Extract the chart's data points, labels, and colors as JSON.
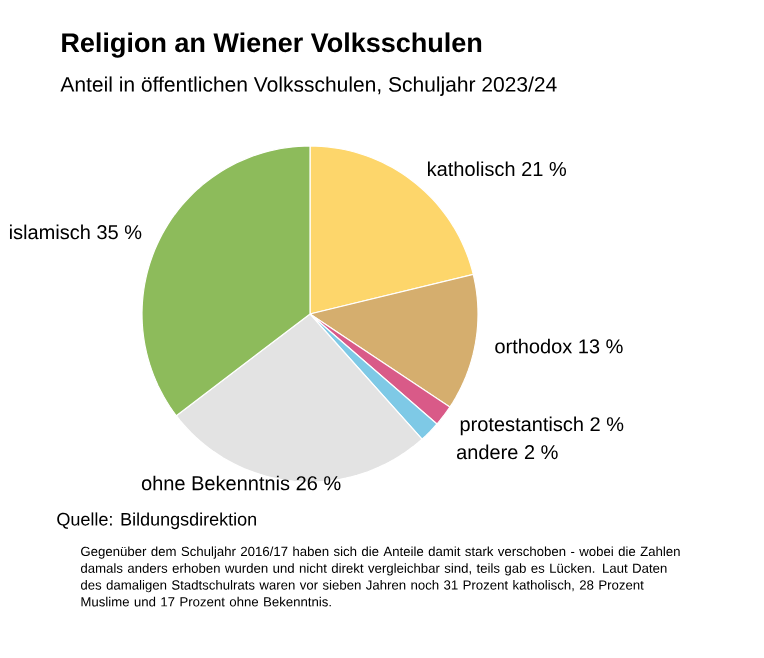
{
  "chart_data": {
    "type": "pie",
    "title": "Religion an Wiener Volksschulen",
    "subtitle": "Anteil in öffentlichen Volksschulen, Schuljahr 2023/24",
    "categories": [
      "katholisch",
      "orthodox",
      "protestantisch",
      "andere",
      "ohne Bekenntnis",
      "islamisch"
    ],
    "values": [
      21,
      13,
      2,
      2,
      26,
      35
    ],
    "value_labels": [
      "21 %",
      "13 %",
      "2 %",
      "2 %",
      "26 %",
      "35 %"
    ],
    "colors": [
      "#fdd66b",
      "#d5ae6e",
      "#d95a88",
      "#7ec9e6",
      "#e3e3e3",
      "#8dbb5b"
    ],
    "annotations": [
      "Quelle: Bildungsdirektion",
      "Gegenüber dem Schuljahr 2016/17 haben sich die Anteile damit stark verschoben - wobei die Zahlen damals anders erhoben wurden und nicht direkt vergleichbar sind, teils gab es Lücken. Laut Daten des damaligen Stadtschulrats waren vor sieben Jahren noch 31 Prozent katholisch, 28 Prozent Muslime und 17 Prozent ohne Bekenntnis."
    ]
  }
}
